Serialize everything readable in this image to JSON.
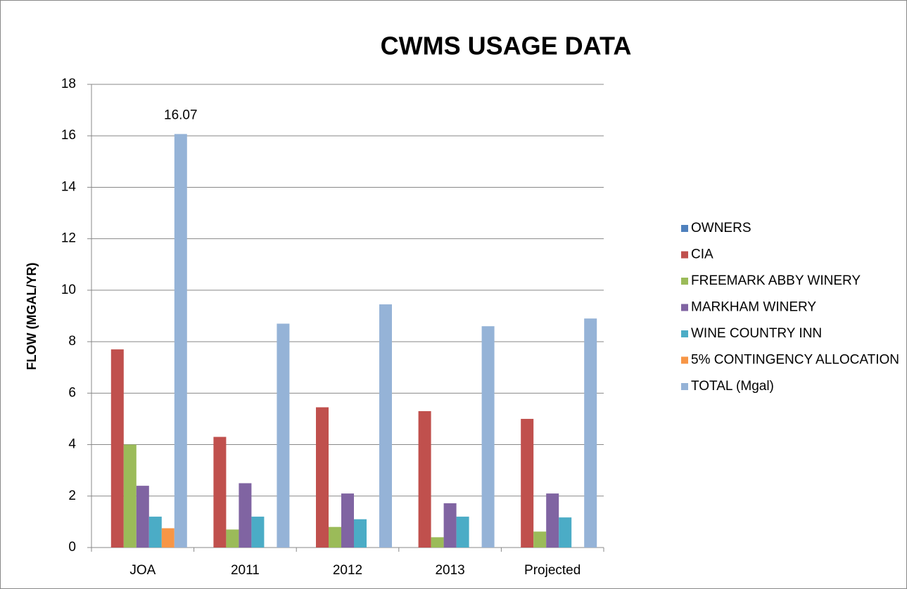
{
  "chart_data": {
    "type": "bar",
    "title": "CWMS USAGE DATA",
    "y_label": "FLOW (MGAL/YR)",
    "categories": [
      "JOA",
      "2011",
      "2012",
      "2013",
      "Projected"
    ],
    "series": [
      {
        "name": "OWNERS",
        "color": "#4f81bd",
        "values": [
          0,
          0,
          0,
          0,
          0
        ]
      },
      {
        "name": "CIA",
        "color": "#c0504d",
        "values": [
          7.7,
          4.3,
          5.45,
          5.3,
          5.0
        ]
      },
      {
        "name": "FREEMARK ABBY WINERY",
        "color": "#9bbb59",
        "values": [
          4.0,
          0.7,
          0.8,
          0.4,
          0.62
        ]
      },
      {
        "name": "MARKHAM WINERY",
        "color": "#8064a2",
        "values": [
          2.4,
          2.5,
          2.1,
          1.72,
          2.1
        ]
      },
      {
        "name": "WINE COUNTRY INN",
        "color": "#4bacc6",
        "values": [
          1.2,
          1.2,
          1.1,
          1.2,
          1.17
        ]
      },
      {
        "name": "5% CONTINGENCY ALLOCATION",
        "color": "#f79646",
        "values": [
          0.75,
          0,
          0,
          0,
          0
        ]
      },
      {
        "name": "TOTAL  (Mgal)",
        "color": "#95b3d7",
        "values": [
          16.07,
          8.7,
          9.45,
          8.6,
          8.9
        ],
        "value_labels": [
          "16.07",
          null,
          null,
          null,
          null
        ]
      }
    ],
    "ylim": [
      0,
      18
    ],
    "yticks": [
      0,
      2,
      4,
      6,
      8,
      10,
      12,
      14,
      16,
      18
    ],
    "grid": true,
    "legend": "right"
  }
}
